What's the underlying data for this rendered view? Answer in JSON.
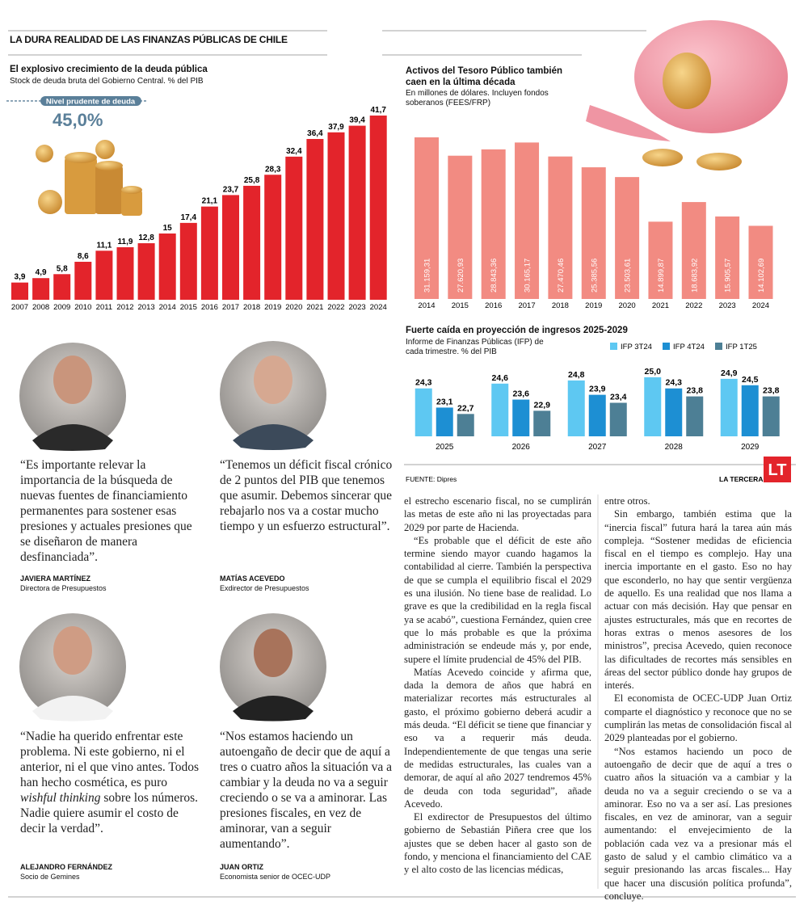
{
  "header": {
    "title": "LA DURA REALIDAD DE LAS FINANZAS PÚBLICAS DE CHILE"
  },
  "chart_data": [
    {
      "type": "bar",
      "title": "El explosivo crecimiento de la deuda pública",
      "subtitle": "Stock de deuda bruta del Gobierno Central. % del PIB",
      "categories": [
        "2007",
        "2008",
        "2009",
        "2010",
        "2011",
        "2012",
        "2013",
        "2014",
        "2015",
        "2016",
        "2017",
        "2018",
        "2019",
        "2020",
        "2021",
        "2022",
        "2023",
        "2024"
      ],
      "values": [
        3.9,
        4.9,
        5.8,
        8.6,
        11.1,
        11.9,
        12.8,
        15,
        17.4,
        21.1,
        23.7,
        25.8,
        28.3,
        32.4,
        36.4,
        37.9,
        39.4,
        41.7
      ],
      "value_labels": [
        "3,9",
        "4,9",
        "5,8",
        "8,6",
        "11,1",
        "11,9",
        "12,8",
        "15",
        "17,4",
        "21,1",
        "23,7",
        "25,8",
        "28,3",
        "32,4",
        "36,4",
        "37,9",
        "39,4",
        "41,7"
      ],
      "color": "#e3242b",
      "ylim": [
        0,
        46
      ],
      "reference": {
        "value": 45,
        "label": "Nivel prudente de deuda",
        "value_label": "45,0%"
      }
    },
    {
      "type": "bar",
      "title": "Activos del Tesoro Público también caen en la última década",
      "subtitle": "En millones de dólares. Incluyen fondos soberanos (FEES/FRP)",
      "categories": [
        "2014",
        "2015",
        "2016",
        "2017",
        "2018",
        "2019",
        "2020",
        "2021",
        "2022",
        "2023",
        "2024"
      ],
      "values": [
        31159.31,
        27620.93,
        28843.36,
        30165.17,
        27470.46,
        25385.56,
        23503.61,
        14899.87,
        18683.92,
        15905.57,
        14102.69
      ],
      "value_labels": [
        "31.159,31",
        "27.620,93",
        "28.843,36",
        "30.165,17",
        "27.470,46",
        "25.385,56",
        "23.503,61",
        "14.899,87",
        "18.683,92",
        "15.905,57",
        "14.102,69"
      ],
      "color": "#f28b82",
      "ylim": [
        0,
        32000
      ]
    },
    {
      "type": "grouped_bar",
      "title": "Fuerte caída en proyección de ingresos 2025-2029",
      "subtitle": "Informe de Finanzas Públicas (IFP) de cada trimestre. % del PIB",
      "categories": [
        "2025",
        "2026",
        "2027",
        "2028",
        "2029"
      ],
      "series": [
        {
          "name": "IFP 3T24",
          "color": "#5ec8f2",
          "values": [
            24.3,
            24.6,
            24.8,
            25.0,
            24.9
          ],
          "value_labels": [
            "24,3",
            "24,6",
            "24,8",
            "25,0",
            "24,9"
          ]
        },
        {
          "name": "IFP 4T24",
          "color": "#1d8fd3",
          "values": [
            23.1,
            23.6,
            23.9,
            24.3,
            24.5
          ],
          "value_labels": [
            "23,1",
            "23,6",
            "23,9",
            "24,3",
            "24,5"
          ]
        },
        {
          "name": "IFP 1T25",
          "color": "#4d7f95",
          "values": [
            22.7,
            22.9,
            23.4,
            23.8,
            23.8
          ],
          "value_labels": [
            "22,7",
            "22,9",
            "23,4",
            "23,8",
            "23,8"
          ]
        }
      ],
      "ylim": [
        21.3,
        25.5
      ]
    }
  ],
  "footer": {
    "source": "FUENTE: Dipres",
    "brand": "LA TERCERA",
    "logo": "LT"
  },
  "quotes": [
    {
      "quote": "“Es importante relevar la importancia de la búsqueda de nuevas fuentes de financiamiento permanentes para sostener esas presiones y actuales presiones que se diseñaron de manera desfinanciada”.",
      "name": "JAVIERA MARTÍNEZ",
      "role": "Directora de Presupuestos"
    },
    {
      "quote": "“Tenemos un déficit fiscal crónico de 2 puntos del PIB que tenemos que asumir. Debemos sincerar que rebajarlo nos va a costar mucho tiempo y un esfuerzo estructural”.",
      "name": "MATÍAS ACEVEDO",
      "role": "Exdirector de Presupuestos"
    },
    {
      "quote": [
        "“Nadie ha querido enfrentar este problema. Ni este gobierno, ni el anterior, ni el que vino antes. Todos han hecho cosmética, es puro ",
        "wishful thinking",
        " sobre los números. Nadie quiere asumir el costo de decir la verdad”."
      ],
      "name": "ALEJANDRO FERNÁNDEZ",
      "role": "Socio de Gemines"
    },
    {
      "quote": "“Nos estamos haciendo un autoengaño de decir que de aquí a tres o cuatro años la situación va a cambiar y la deuda no va a seguir creciendo o se va a aminorar. Las presiones fiscales, en vez de aminorar, van a seguir aumentando”.",
      "name": "JUAN ORTIZ",
      "role": "Economista senior de OCEC-UDP"
    }
  ],
  "article": {
    "columns": [
      [
        "el estrecho escenario fiscal, no se cumplirán las metas de este año ni las proyectadas para 2029 por parte de Hacienda.",
        "“Es probable que el déficit de este año termine siendo mayor cuando hagamos la contabilidad al cierre. También la perspectiva de que se cumpla el equilibrio fiscal el 2029 es una ilusión. No tiene base de realidad. Lo grave es que la credibilidad en la regla fiscal ya se acabó”, cuestiona Fernández, quien cree que lo más probable es que la próxima administración se endeude más y, por ende, supere el límite prudencial de 45% del PIB.",
        "Matías Acevedo coincide y afirma que, dada la demora de años que habrá en materializar recortes más estructurales al gasto, el próximo gobierno deberá acudir a más deuda. “El déficit se tiene que financiar y eso va a requerir más deuda. Independientemente de que tengas una serie de medidas estructurales, las cuales van a demorar, de aquí al año 2027 tendremos 45% de deuda con toda seguridad”, añade Acevedo.",
        "El exdirector de Presupuestos del último gobierno de Sebastián Piñera cree que los ajustes que se deben hacer al gasto son de fondo, y menciona el financiamiento del CAE y el alto costo de las licencias médicas,"
      ],
      [
        "entre otros.",
        "Sin embargo, también estima que la “inercia fiscal” futura hará la tarea aún más compleja. “Sostener medidas de eficiencia fiscal en el tiempo es complejo. Hay una inercia importante en el gasto. Eso no hay que esconderlo, no hay que sentir vergüenza de aquello. Es una realidad que nos llama a actuar con más decisión. Hay que pensar en ajustes estructurales, más que en recortes de horas extras o menos asesores de los ministros”, precisa Acevedo, quien reconoce las dificultades de recortes más sensibles en áreas del sector público donde hay grupos de interés.",
        "El economista de OCEC-UDP Juan Ortiz comparte el diagnóstico y reconoce que no se cumplirán las metas de consolidación fiscal al 2029 planteadas por el gobierno.",
        "“Nos estamos haciendo un poco de autoengaño de decir que de aquí a tres o cuatro años la situación va a cambiar y la deuda no va a seguir creciendo o se va a aminorar. Eso no va a ser así. Las presiones fiscales, en vez de aminorar, van a seguir aumentando: el envejecimiento de la población cada vez va a presionar más el gasto de salud y el cambio climático va a seguir presionando las arcas fiscales... Hay que hacer una discusión política profunda”, concluye."
      ]
    ]
  }
}
